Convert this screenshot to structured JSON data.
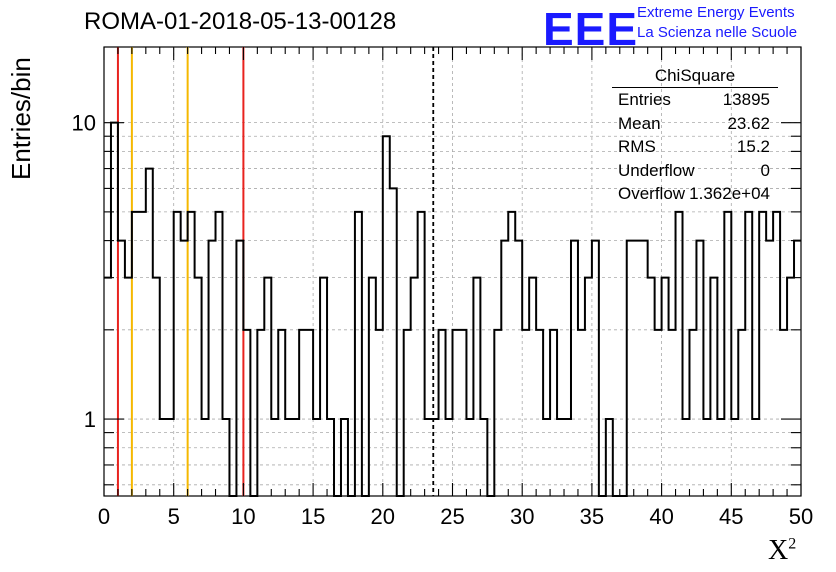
{
  "header": {
    "title": "ROMA-01-2018-05-13-00128",
    "logo_text": "EEE",
    "logo_line1": "Extreme Energy Events",
    "logo_line2": "La Scienza nelle Scuole"
  },
  "axes": {
    "ylabel": "Entries/bin",
    "xlabel_base": "X",
    "xlabel_sup": "2"
  },
  "stats": {
    "title": "ChiSquare",
    "rows": [
      {
        "key": "Entries",
        "value": "13895"
      },
      {
        "key": "Mean",
        "value": "23.62"
      },
      {
        "key": "RMS",
        "value": "15.2"
      },
      {
        "key": "Underflow",
        "value": "0"
      },
      {
        "key": "Overflow",
        "value": "1.362e+04"
      }
    ]
  },
  "chart_data": {
    "type": "histogram",
    "title": "ROMA-01-2018-05-13-00128",
    "xlabel": "X²",
    "ylabel": "Entries/bin",
    "xlim": [
      0,
      50
    ],
    "ylim": [
      0.55,
      18
    ],
    "yscale": "log",
    "bin_width": 0.5,
    "xticks": [
      0,
      5,
      10,
      15,
      20,
      25,
      30,
      35,
      40,
      45,
      50
    ],
    "yticks": [
      1,
      10
    ],
    "grid": true,
    "counts": [
      3,
      10,
      4,
      3,
      5,
      5,
      7,
      3,
      1,
      1,
      5,
      4,
      5,
      3,
      1,
      4,
      5,
      1,
      0,
      4,
      2,
      0,
      2,
      3,
      1,
      2,
      1,
      1,
      2,
      2,
      1,
      3,
      1,
      0,
      1,
      0,
      5,
      0,
      3,
      2,
      9,
      6,
      0,
      2,
      3,
      5,
      1,
      1,
      2,
      1,
      2,
      2,
      1,
      3,
      1,
      0,
      2,
      4,
      5,
      4,
      2,
      3,
      2,
      1,
      2,
      1,
      1,
      4,
      2,
      3,
      4,
      0,
      1,
      0,
      0,
      4,
      4,
      4,
      3,
      2,
      3,
      2,
      5,
      1,
      2,
      4,
      1,
      3,
      1,
      5,
      1,
      2,
      5,
      1,
      5,
      4,
      5,
      2,
      3,
      4
    ],
    "vertical_lines": [
      {
        "x": 1,
        "color": "#e8231e",
        "style": "solid"
      },
      {
        "x": 2,
        "color": "#f5b800",
        "style": "solid"
      },
      {
        "x": 6,
        "color": "#f5b800",
        "style": "solid"
      },
      {
        "x": 10,
        "color": "#e8231e",
        "style": "solid"
      },
      {
        "x": 23.62,
        "color": "#000000",
        "style": "dashed"
      }
    ]
  }
}
